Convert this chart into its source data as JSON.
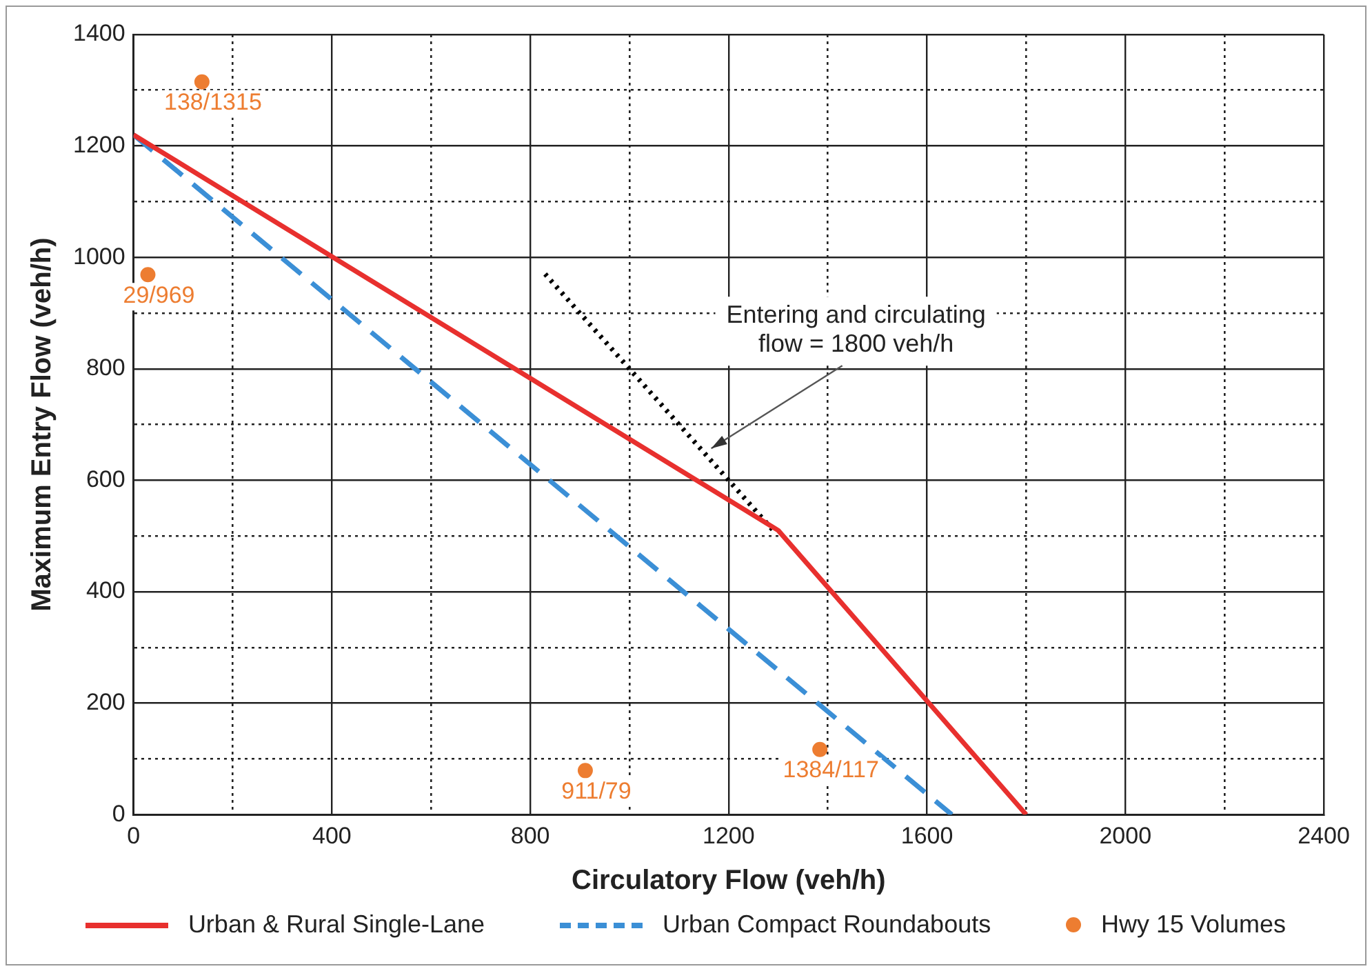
{
  "chart_data": {
    "type": "line",
    "xlabel": "Circulatory Flow (veh/h)",
    "ylabel": "Maximum Entry Flow (veh/h)",
    "xlim": [
      0,
      2400
    ],
    "ylim": [
      0,
      1400
    ],
    "xticks": [
      0,
      {
        "value": 200,
        "label": null
      },
      400,
      {
        "value": 600,
        "label": null
      },
      800,
      {
        "value": 1000,
        "label": null
      },
      1200,
      {
        "value": 1400,
        "label": null
      },
      1600,
      {
        "value": 1800,
        "label": null
      },
      2000,
      {
        "value": 2200,
        "label": null
      },
      2400
    ],
    "yticks": [
      0,
      {
        "value": 100,
        "label": null
      },
      200,
      {
        "value": 300,
        "label": null
      },
      400,
      {
        "value": 500,
        "label": null
      },
      600,
      {
        "value": 700,
        "label": null
      },
      800,
      {
        "value": 900,
        "label": null
      },
      1000,
      {
        "value": 1100,
        "label": null
      },
      1200,
      {
        "value": 1300,
        "label": null
      },
      1400
    ],
    "grid": true,
    "legend": "bottom",
    "series": [
      {
        "name": "Urban & Rural Single-Lane",
        "type": "line",
        "color": "#e8302e",
        "line_style": "solid",
        "marker": "none",
        "x": [
          0,
          1300,
          1800
        ],
        "values": [
          1220,
          510,
          0
        ]
      },
      {
        "name": "Urban Compact Roundabouts",
        "type": "line",
        "color": "#3b8fd6",
        "line_style": "dashed",
        "marker": "none",
        "x": [
          0,
          1650
        ],
        "values": [
          1220,
          0
        ]
      },
      {
        "type": "line",
        "color": "#000000",
        "line_style": "dotted",
        "marker": "none",
        "x": [
          830,
          1290
        ],
        "values": [
          970,
          510
        ]
      },
      {
        "name": "Hwy 15 Volumes",
        "type": "scatter",
        "color": "#ed7d31",
        "marker": "circle",
        "x": [
          138,
          29,
          911,
          1384
        ],
        "values": [
          1315,
          969,
          79,
          117
        ],
        "value_labels": [
          "138/1315",
          "29/969",
          "911/79",
          "1384/117"
        ]
      }
    ],
    "annotations": [
      {
        "text": "Entering and circulating\nflow = 1800 veh/h",
        "x": 1165,
        "y": 657
      }
    ]
  }
}
